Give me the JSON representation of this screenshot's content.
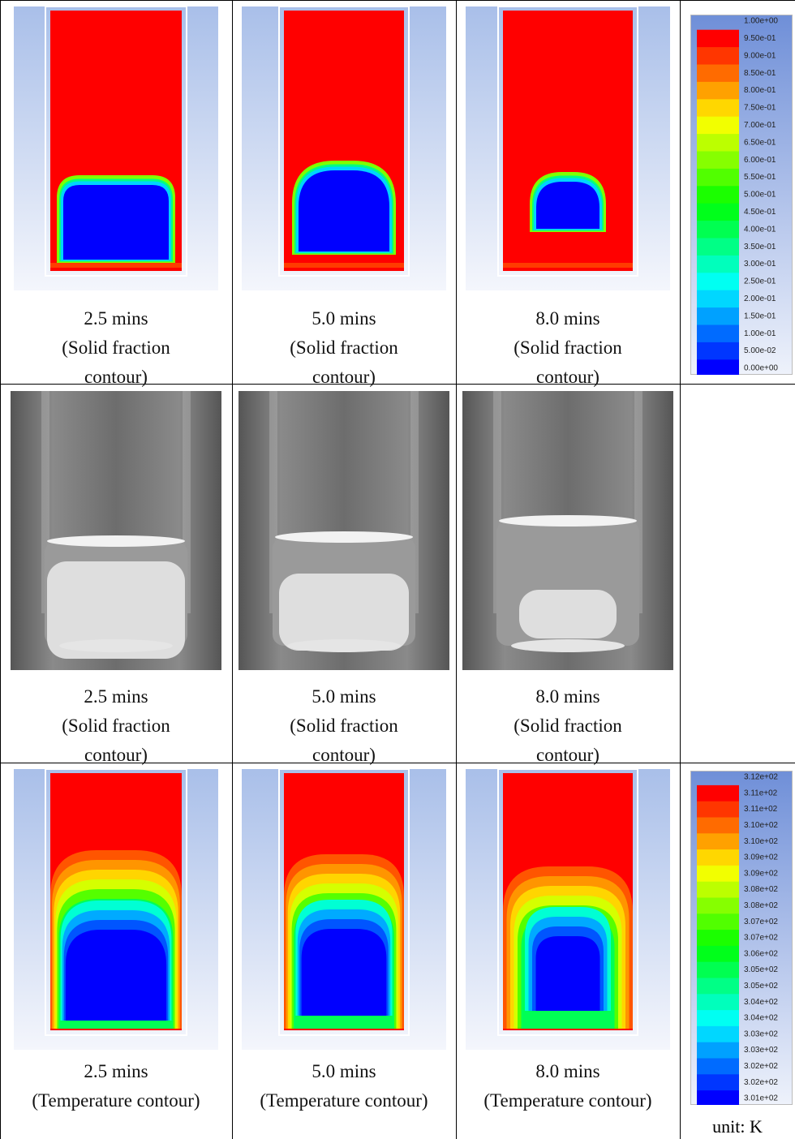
{
  "rows": [
    {
      "cells": [
        {
          "time": "2.5 mins",
          "caption": "(Solid fraction contour)"
        },
        {
          "time": "5.0 mins",
          "caption": "(Solid fraction contour)"
        },
        {
          "time": "8.0 mins",
          "caption": "(Solid fraction contour)"
        }
      ]
    },
    {
      "cells": [
        {
          "time": "2.5 mins",
          "caption": "(Solid fraction contour)"
        },
        {
          "time": "5.0 mins",
          "caption": "(Solid fraction contour)"
        },
        {
          "time": "8.0 mins",
          "caption": "(Solid fraction contour)"
        }
      ]
    },
    {
      "cells": [
        {
          "time": "2.5 mins",
          "caption": "(Temperature contour)"
        },
        {
          "time": "5.0 mins",
          "caption": "(Temperature contour)"
        },
        {
          "time": "8.0 mins",
          "caption": "(Temperature contour)"
        }
      ]
    }
  ],
  "legends": [
    {
      "labels": [
        "1.00e+00",
        "9.50e-01",
        "9.00e-01",
        "8.50e-01",
        "8.00e-01",
        "7.50e-01",
        "7.00e-01",
        "6.50e-01",
        "6.00e-01",
        "5.50e-01",
        "5.00e-01",
        "4.50e-01",
        "4.00e-01",
        "3.50e-01",
        "3.00e-01",
        "2.50e-01",
        "2.00e-01",
        "1.50e-01",
        "1.00e-01",
        "5.00e-02",
        "0.00e+00"
      ]
    },
    {
      "labels": [
        "3.12e+02",
        "3.11e+02",
        "3.11e+02",
        "3.10e+02",
        "3.10e+02",
        "3.09e+02",
        "3.09e+02",
        "3.08e+02",
        "3.08e+02",
        "3.07e+02",
        "3.07e+02",
        "3.06e+02",
        "3.05e+02",
        "3.05e+02",
        "3.04e+02",
        "3.04e+02",
        "3.03e+02",
        "3.03e+02",
        "3.02e+02",
        "3.02e+02",
        "3.01e+02"
      ],
      "unit": "unit: K"
    }
  ]
}
